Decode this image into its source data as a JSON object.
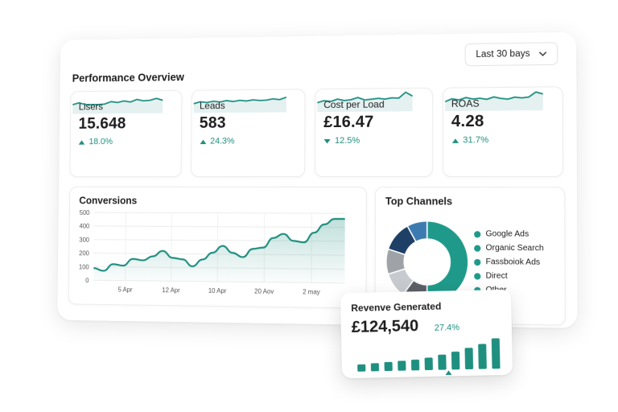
{
  "header": {
    "title": "Performance Overview",
    "range": "Last 30 bays"
  },
  "kpis": [
    {
      "label": "Lisers",
      "value": "15.648",
      "change": "18.0%",
      "direction": "up",
      "spark": [
        4,
        5,
        4,
        4,
        4,
        4.2,
        5.5,
        5,
        5.8,
        5.2,
        6.5,
        5.8,
        6,
        7,
        6
      ]
    },
    {
      "label": "Leads",
      "value": "583",
      "change": "24.3%",
      "direction": "up",
      "spark": [
        4,
        5,
        4.6,
        5.2,
        4.8,
        5.5,
        5,
        5.6,
        5.2,
        5.8,
        5.4,
        5.6,
        6.2,
        5.8,
        7
      ]
    },
    {
      "label": "Cost per Load",
      "value": "£16.47",
      "change": "12.5%",
      "direction": "down",
      "spark": [
        4,
        5,
        4.6,
        5.8,
        5,
        5.4,
        6.5,
        5.2,
        5.6,
        6,
        5.6,
        6.2,
        6,
        9,
        7
      ]
    },
    {
      "label": "ROAS",
      "value": "4.28",
      "change": "31.7%",
      "direction": "up",
      "spark": [
        4,
        5.4,
        4.8,
        6,
        5.2,
        5.6,
        5,
        6.2,
        5.4,
        5,
        6,
        5.6,
        6,
        8.5,
        7.5
      ]
    }
  ],
  "spark_ylim": [
    0,
    10
  ],
  "spark_color": "#1f8f80",
  "conversions": {
    "title": "Conversions",
    "ylim": [
      0,
      500
    ],
    "yticks": [
      0,
      100,
      200,
      300,
      400,
      500
    ],
    "xlabels": [
      "5 Apr",
      "12 Apr",
      "10 Apr",
      "20 Aov",
      "2 may"
    ],
    "values": [
      90,
      70,
      120,
      110,
      160,
      150,
      180,
      220,
      170,
      160,
      110,
      160,
      210,
      260,
      210,
      180,
      240,
      250,
      320,
      350,
      300,
      290,
      360,
      420,
      460,
      460
    ],
    "color": "#1f8f80",
    "grid": true
  },
  "channels": {
    "title": "Top Channels",
    "legend_color": "#1f9a8a",
    "items": [
      {
        "name": "Google Ads",
        "value": 50,
        "color": "#1f9a8a"
      },
      {
        "name": "Organic Search",
        "value": 10,
        "color": "#5b6066"
      },
      {
        "name": "Fassboiok Ads",
        "value": 10,
        "color": "#9ea3a8"
      },
      {
        "name": "Direct",
        "value": 12,
        "color": "#1e3f66"
      },
      {
        "name": "Other",
        "value": 8,
        "color": "#3c7bb0"
      }
    ],
    "remainder": {
      "value": 10,
      "color": "#c7cbcf"
    }
  },
  "revenue": {
    "title": "Revenve Generated",
    "value": "£124,540",
    "change": "27.4%",
    "direction": "up",
    "bars": [
      8,
      9,
      10,
      11,
      12,
      14,
      17,
      20,
      24,
      28,
      34
    ],
    "ylim": [
      0,
      36
    ],
    "color": "#1f8f80"
  }
}
